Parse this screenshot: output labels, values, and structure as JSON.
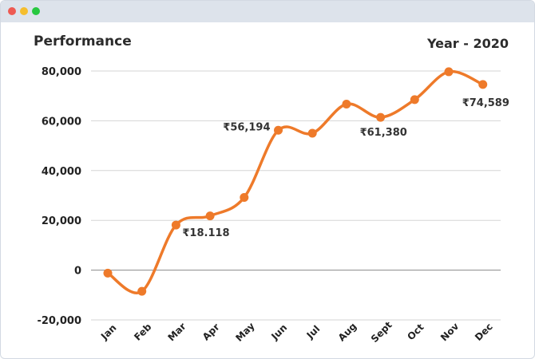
{
  "window": {
    "controls": [
      "close",
      "minimize",
      "maximize"
    ],
    "control_colors": {
      "close": "#ee5a52",
      "minimize": "#f5be2e",
      "maximize": "#27c840"
    }
  },
  "chart_data": {
    "type": "line",
    "title": "Performance",
    "subtitle": "Year - 2020",
    "categories": [
      "Jan",
      "Feb",
      "Mar",
      "Apr",
      "May",
      "Jun",
      "Jul",
      "Aug",
      "Sept",
      "Oct",
      "Nov",
      "Dec"
    ],
    "series": [
      {
        "values": [
          -1200,
          -8500,
          18118,
          21800,
          29200,
          56194,
          55000,
          66700,
          61380,
          68500,
          79700,
          74589
        ],
        "color": "#ee7a2a"
      }
    ],
    "ylim": [
      -20000,
      80000
    ],
    "yticks": [
      80000,
      60000,
      40000,
      20000,
      0,
      -20000
    ],
    "ytick_labels": [
      "80,000",
      "60,000",
      "40,000",
      "20,000",
      "0",
      "-20,000"
    ],
    "grid": true,
    "smooth": true,
    "data_labels": [
      {
        "index": 2,
        "text": "₹18.118"
      },
      {
        "index": 5,
        "text": "₹56,194"
      },
      {
        "index": 8,
        "text": "₹61,380"
      },
      {
        "index": 11,
        "text": "₹74,589"
      }
    ]
  }
}
